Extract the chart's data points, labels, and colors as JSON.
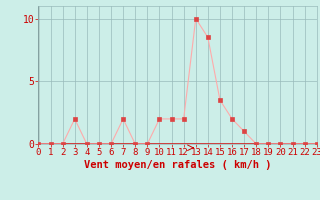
{
  "x": [
    0,
    1,
    2,
    3,
    4,
    5,
    6,
    7,
    8,
    9,
    10,
    11,
    12,
    13,
    14,
    15,
    16,
    17,
    18,
    19,
    20,
    21,
    22,
    23
  ],
  "y": [
    0,
    0,
    0,
    2,
    0,
    0,
    0,
    2,
    0,
    0,
    2,
    2,
    2,
    10,
    8.5,
    3.5,
    2,
    1,
    0,
    0,
    0,
    0,
    0,
    0
  ],
  "line_color": "#ffaaaa",
  "marker_color": "#dd4444",
  "bg_color": "#cceee8",
  "grid_color": "#99bbbb",
  "axis_line_color": "#cc2222",
  "tick_color": "#cc0000",
  "xlabel": "Vent moyen/en rafales ( km/h )",
  "ylabel": "",
  "xlim": [
    0,
    23
  ],
  "ylim": [
    0,
    11
  ],
  "yticks": [
    0,
    5,
    10
  ],
  "xtick_labels": [
    "0",
    "1",
    "2",
    "3",
    "4",
    "5",
    "6",
    "7",
    "8",
    "9",
    "10",
    "11",
    "12",
    "13",
    "14",
    "15",
    "16",
    "17",
    "18",
    "19",
    "20",
    "21",
    "22",
    "23"
  ],
  "font_size": 6.5,
  "xlabel_fontsize": 7.5,
  "marker_size": 2.5,
  "line_width": 0.8
}
